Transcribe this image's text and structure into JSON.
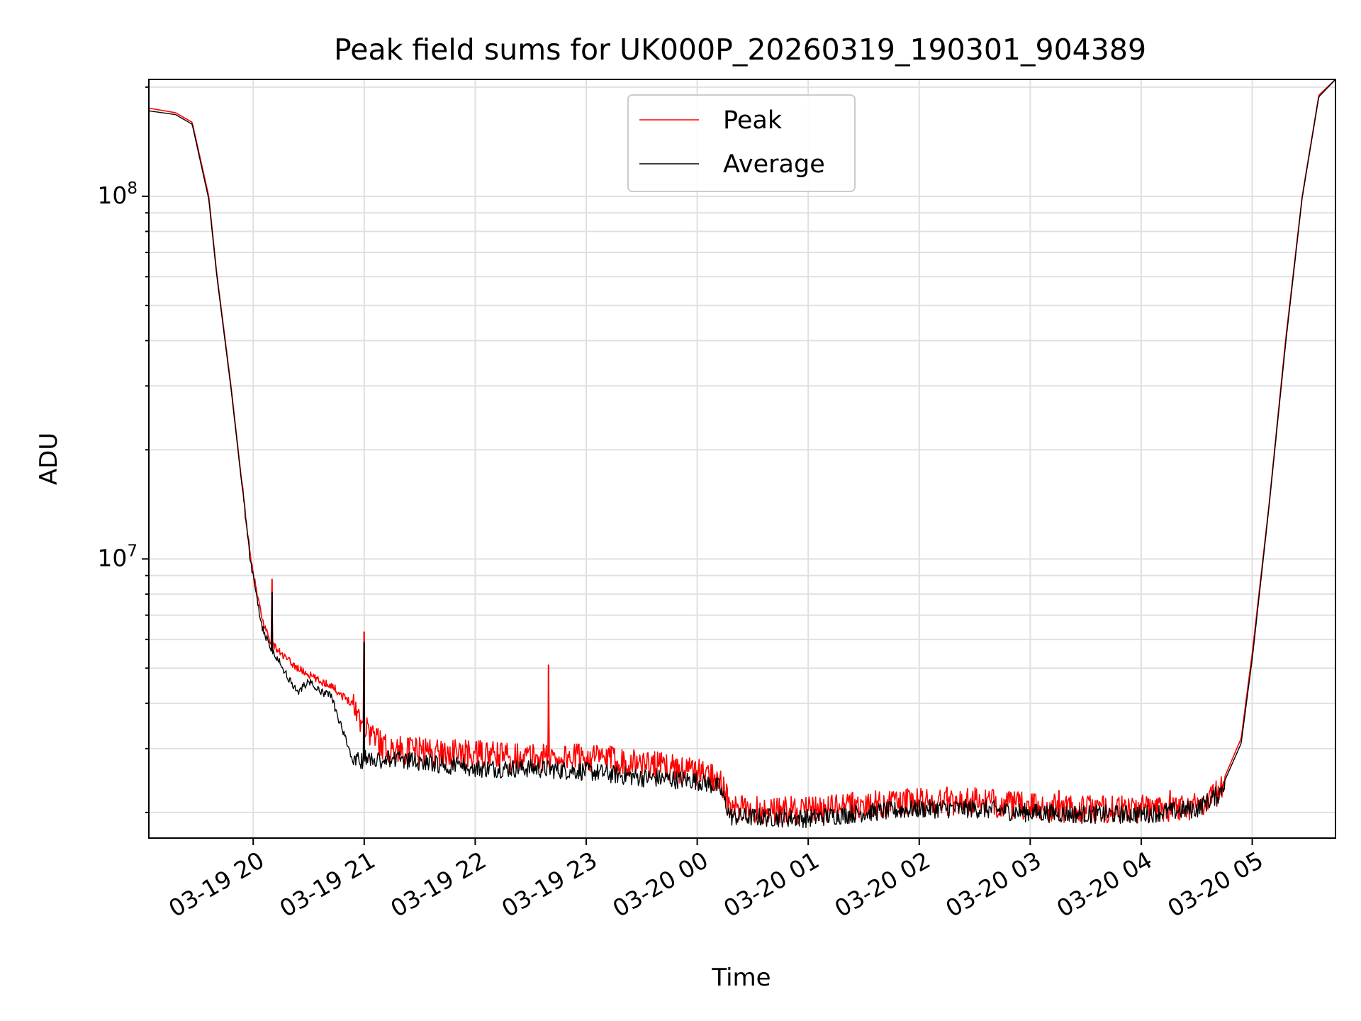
{
  "chart_data": {
    "type": "line",
    "title": "Peak field sums for UK000P_20260319_190301_904389",
    "xlabel": "Time",
    "ylabel": "ADU",
    "yscale": "log",
    "ylim": [
      1700000,
      210000000
    ],
    "xlim_hours": [
      -0.94,
      9.75
    ],
    "x_ticks": [
      {
        "label": "03-19 20",
        "hour": 0
      },
      {
        "label": "03-19 21",
        "hour": 1
      },
      {
        "label": "03-19 22",
        "hour": 2
      },
      {
        "label": "03-19 23",
        "hour": 3
      },
      {
        "label": "03-20 00",
        "hour": 4
      },
      {
        "label": "03-20 01",
        "hour": 5
      },
      {
        "label": "03-20 02",
        "hour": 6
      },
      {
        "label": "03-20 03",
        "hour": 7
      },
      {
        "label": "03-20 04",
        "hour": 8
      },
      {
        "label": "03-20 05",
        "hour": 9
      }
    ],
    "y_major_ticks": [
      {
        "base": "10",
        "exp": "7",
        "value": 10000000
      },
      {
        "base": "10",
        "exp": "8",
        "value": 100000000
      }
    ],
    "legend": {
      "position": "upper center"
    },
    "grid": true,
    "hours_offset_note": "x values are hours after 03-19 20:00",
    "series": [
      {
        "name": "Peak",
        "color": "#ff0000",
        "points": [
          [
            -0.94,
            175000000
          ],
          [
            -0.7,
            170000000
          ],
          [
            -0.55,
            160000000
          ],
          [
            -0.4,
            100000000
          ],
          [
            -0.33,
            62000000
          ],
          [
            -0.2,
            30000000
          ],
          [
            -0.1,
            16000000
          ],
          [
            -0.02,
            9800000
          ],
          [
            0.08,
            6800000
          ],
          [
            0.15,
            6000000
          ],
          [
            0.22,
            5600000
          ],
          [
            0.3,
            5300000
          ],
          [
            0.4,
            5000000
          ],
          [
            0.5,
            4800000
          ],
          [
            0.6,
            4600000
          ],
          [
            0.7,
            4500000
          ],
          [
            0.8,
            4200000
          ],
          [
            0.9,
            4000000
          ],
          [
            1.0,
            3500000
          ],
          [
            1.2,
            3000000
          ],
          [
            1.6,
            2950000
          ],
          [
            2.0,
            2900000
          ],
          [
            2.5,
            2850000
          ],
          [
            3.0,
            2850000
          ],
          [
            3.5,
            2750000
          ],
          [
            4.0,
            2600000
          ],
          [
            4.2,
            2500000
          ],
          [
            4.3,
            2050000
          ],
          [
            5.0,
            2030000
          ],
          [
            5.5,
            2100000
          ],
          [
            6.0,
            2150000
          ],
          [
            6.5,
            2150000
          ],
          [
            7.0,
            2080000
          ],
          [
            7.5,
            2050000
          ],
          [
            8.0,
            2050000
          ],
          [
            8.5,
            2100000
          ],
          [
            8.7,
            2300000
          ],
          [
            8.9,
            3200000
          ],
          [
            9.0,
            5500000
          ],
          [
            9.15,
            14000000
          ],
          [
            9.3,
            40000000
          ],
          [
            9.45,
            100000000
          ],
          [
            9.6,
            190000000
          ],
          [
            9.75,
            210000000
          ]
        ],
        "spikes": [
          {
            "hour": 0.17,
            "value": 8800000
          },
          {
            "hour": 1.0,
            "value": 6300000
          },
          {
            "hour": 2.66,
            "value": 5100000
          },
          {
            "hour": 6.25,
            "value": 2350000
          },
          {
            "hour": 7.26,
            "value": 2300000
          },
          {
            "hour": 8.26,
            "value": 2300000
          }
        ]
      },
      {
        "name": "Average",
        "color": "#000000",
        "points": [
          [
            -0.94,
            172000000
          ],
          [
            -0.7,
            168000000
          ],
          [
            -0.55,
            158000000
          ],
          [
            -0.4,
            98000000
          ],
          [
            -0.33,
            61000000
          ],
          [
            -0.2,
            29500000
          ],
          [
            -0.1,
            15800000
          ],
          [
            -0.02,
            9600000
          ],
          [
            0.08,
            6500000
          ],
          [
            0.15,
            5700000
          ],
          [
            0.22,
            5300000
          ],
          [
            0.3,
            4800000
          ],
          [
            0.4,
            4300000
          ],
          [
            0.5,
            4600000
          ],
          [
            0.6,
            4300000
          ],
          [
            0.7,
            4200000
          ],
          [
            0.8,
            3400000
          ],
          [
            0.9,
            2750000
          ],
          [
            1.0,
            2800000
          ],
          [
            1.2,
            2800000
          ],
          [
            1.6,
            2750000
          ],
          [
            2.0,
            2650000
          ],
          [
            2.5,
            2650000
          ],
          [
            3.0,
            2600000
          ],
          [
            3.5,
            2500000
          ],
          [
            4.0,
            2450000
          ],
          [
            4.2,
            2350000
          ],
          [
            4.3,
            1950000
          ],
          [
            5.0,
            1930000
          ],
          [
            5.5,
            2000000
          ],
          [
            6.0,
            2050000
          ],
          [
            6.5,
            2050000
          ],
          [
            7.0,
            2000000
          ],
          [
            7.5,
            1980000
          ],
          [
            8.0,
            1980000
          ],
          [
            8.5,
            2050000
          ],
          [
            8.7,
            2250000
          ],
          [
            8.9,
            3100000
          ],
          [
            9.0,
            5300000
          ],
          [
            9.15,
            13800000
          ],
          [
            9.3,
            39000000
          ],
          [
            9.45,
            99000000
          ],
          [
            9.6,
            188000000
          ],
          [
            9.75,
            210000000
          ]
        ],
        "spikes": [
          {
            "hour": 0.17,
            "value": 8100000
          },
          {
            "hour": 1.0,
            "value": 5900000
          }
        ]
      }
    ]
  }
}
